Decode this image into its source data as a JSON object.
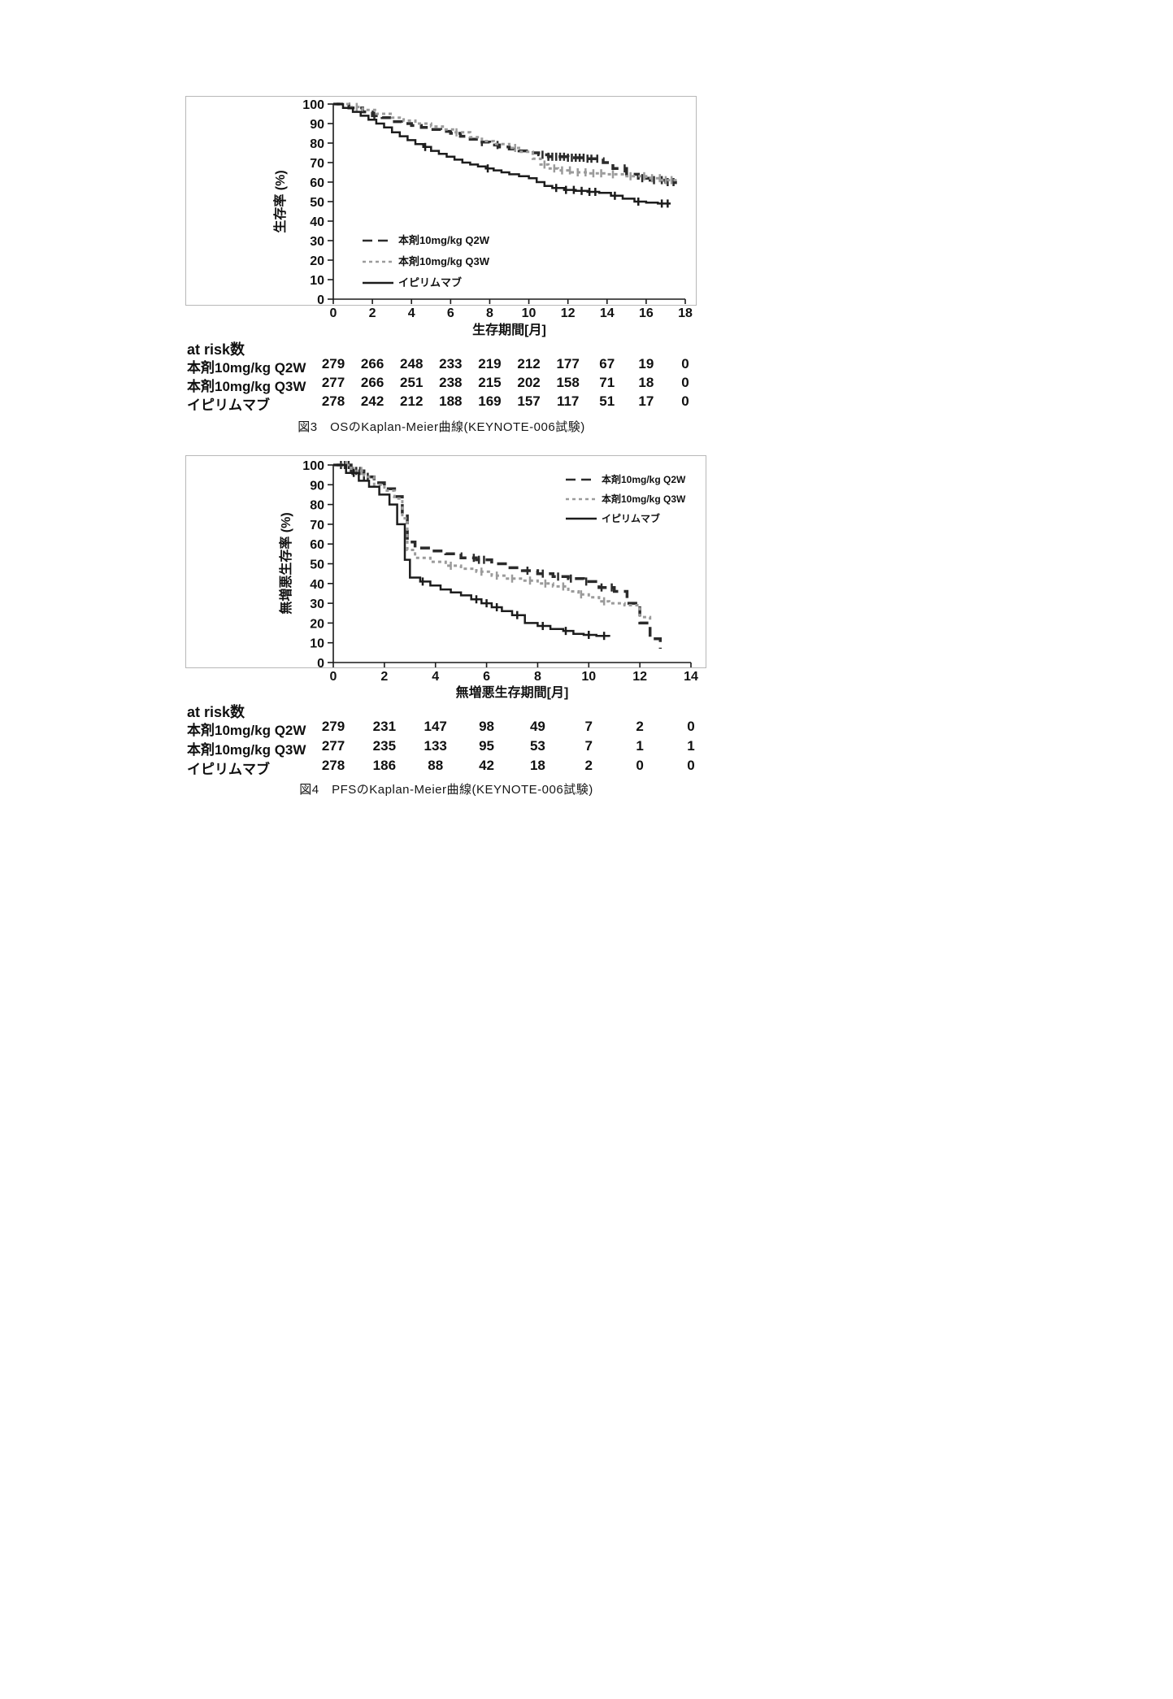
{
  "chart_data": [
    {
      "type": "line",
      "km_step": true,
      "title": "OSのKaplan-Meier曲線",
      "study": "KEYNOTE-006試験",
      "caption": "図3　OSのKaplan-Meier曲線(KEYNOTE-006試験)",
      "xlabel": "生存期間[月]",
      "ylabel": "生存率 (%)",
      "xlim": [
        0,
        18
      ],
      "ylim": [
        0,
        100
      ],
      "xticks": [
        0,
        2,
        4,
        6,
        8,
        10,
        12,
        14,
        16,
        18
      ],
      "yticks": [
        0,
        10,
        20,
        30,
        40,
        50,
        60,
        70,
        80,
        90,
        100
      ],
      "grid": false,
      "legend_position": "lower-left-inside",
      "series": [
        {
          "name": "本剤10mg/kg Q2W",
          "line": "dashed",
          "color": "#2b2b2b",
          "x": [
            0,
            0.8,
            1.5,
            2.0,
            2.5,
            3.0,
            3.5,
            4.0,
            4.5,
            5.0,
            5.5,
            6.0,
            6.5,
            7.0,
            7.5,
            8.0,
            8.5,
            9.0,
            9.5,
            10.0,
            10.5,
            11.0,
            12.0,
            13.0,
            13.8,
            14.3,
            15.0,
            15.6,
            16.2,
            17.0,
            17.5
          ],
          "y": [
            100,
            98,
            96,
            94,
            93,
            91,
            90,
            89,
            88,
            87,
            86,
            85,
            83.5,
            82,
            80.5,
            79,
            78,
            77,
            76,
            75,
            74,
            73,
            72.5,
            72,
            70,
            67,
            64,
            62,
            61,
            60,
            59
          ],
          "censor_x": [
            2.1,
            7.6,
            8.4,
            10.7,
            11.0,
            11.2,
            11.4,
            11.6,
            11.8,
            12.0,
            12.2,
            12.4,
            12.6,
            12.8,
            13.0,
            13.2,
            13.5,
            14.9,
            15.8,
            16.4,
            16.8,
            17.1,
            17.4
          ]
        },
        {
          "name": "本剤10mg/kg Q3W",
          "line": "dashed-light",
          "color": "#9b9b9b",
          "x": [
            0,
            0.8,
            1.5,
            2.2,
            3.0,
            3.6,
            4.2,
            5.0,
            5.6,
            6.2,
            7.0,
            7.6,
            8.2,
            9.0,
            9.6,
            10.2,
            10.6,
            11.0,
            11.5,
            12.2,
            13.0,
            14.0,
            15.0,
            16.0,
            16.8,
            17.5
          ],
          "y": [
            100,
            98.5,
            97,
            95,
            93,
            91.5,
            90,
            88.5,
            87,
            85.5,
            83,
            81,
            79.5,
            77.5,
            75.5,
            72,
            69,
            67,
            66,
            65,
            64.5,
            64,
            63,
            62,
            61,
            60
          ],
          "censor_x": [
            1.2,
            6.3,
            9.3,
            10.8,
            11.3,
            11.7,
            12.1,
            12.5,
            12.9,
            13.3,
            13.7,
            14.3,
            15.2,
            15.9,
            16.3,
            16.7,
            17.0,
            17.3
          ]
        },
        {
          "name": "イピリムマブ",
          "line": "solid",
          "color": "#1c1c1c",
          "x": [
            0,
            0.5,
            1.0,
            1.4,
            1.8,
            2.2,
            2.6,
            3.0,
            3.4,
            3.8,
            4.2,
            4.6,
            5.0,
            5.4,
            5.8,
            6.2,
            6.6,
            7.0,
            7.4,
            7.8,
            8.2,
            8.6,
            9.0,
            9.5,
            10.0,
            10.4,
            10.8,
            11.2,
            11.8,
            12.4,
            13.0,
            13.6,
            14.2,
            14.8,
            15.4,
            16.0,
            16.6,
            17.2
          ],
          "y": [
            100,
            98,
            96,
            94,
            92,
            90,
            88,
            85.5,
            83.5,
            81.5,
            79.5,
            78,
            76,
            74.5,
            73,
            71.5,
            70,
            69,
            68,
            67,
            66,
            65,
            64,
            63,
            62,
            60,
            58,
            57,
            56,
            55.5,
            55,
            54.5,
            53,
            51.5,
            50,
            49.5,
            49,
            48.5
          ],
          "censor_x": [
            4.7,
            7.9,
            11.4,
            11.9,
            12.3,
            12.7,
            13.1,
            13.4,
            14.4,
            15.6,
            16.8,
            17.1
          ]
        }
      ],
      "at_risk": {
        "label": "at risk数",
        "months": [
          0,
          2,
          4,
          6,
          8,
          10,
          12,
          14,
          16,
          18
        ],
        "rows": [
          {
            "name": "本剤10mg/kg Q2W",
            "values": [
              279,
              266,
              248,
              233,
              219,
              212,
              177,
              67,
              19,
              0
            ]
          },
          {
            "name": "本剤10mg/kg Q3W",
            "values": [
              277,
              266,
              251,
              238,
              215,
              202,
              158,
              71,
              18,
              0
            ]
          },
          {
            "name": "イピリムマブ",
            "values": [
              278,
              242,
              212,
              188,
              169,
              157,
              117,
              51,
              17,
              0
            ]
          }
        ]
      }
    },
    {
      "type": "line",
      "km_step": true,
      "title": "PFSのKaplan-Meier曲線",
      "study": "KEYNOTE-006試験",
      "caption": "図4　PFSのKaplan-Meier曲線(KEYNOTE-006試験)",
      "xlabel": "無増悪生存期間[月]",
      "ylabel": "無増悪生存率 (%)",
      "xlim": [
        0,
        14
      ],
      "ylim": [
        0,
        100
      ],
      "xticks": [
        0,
        2,
        4,
        6,
        8,
        10,
        12,
        14
      ],
      "yticks": [
        0,
        10,
        20,
        30,
        40,
        50,
        60,
        70,
        80,
        90,
        100
      ],
      "grid": false,
      "legend_position": "upper-right-inside",
      "series": [
        {
          "name": "本剤10mg/kg Q2W",
          "line": "dashed",
          "color": "#2b2b2b",
          "x": [
            0,
            0.7,
            1.2,
            1.6,
            2.0,
            2.4,
            2.7,
            2.9,
            3.2,
            3.8,
            4.4,
            5.0,
            5.6,
            6.2,
            6.8,
            7.4,
            8.0,
            8.6,
            9.2,
            9.8,
            10.4,
            11.0,
            11.5,
            12.0,
            12.4,
            12.8
          ],
          "y": [
            100,
            97,
            94,
            91,
            88,
            84,
            75,
            61,
            58,
            56.5,
            55,
            53,
            52,
            50,
            48,
            46.5,
            45,
            43.5,
            42.5,
            41,
            38,
            36,
            30,
            20,
            12,
            7
          ],
          "censor_x": [
            0.3,
            0.45,
            0.6,
            0.75,
            0.9,
            1.05,
            1.2,
            1.35,
            5.5,
            5.7,
            5.9,
            7.6,
            8.2,
            8.8,
            9.3,
            9.9,
            10.5,
            10.9
          ]
        },
        {
          "name": "本剤10mg/kg Q3W",
          "line": "dashed-light",
          "color": "#9b9b9b",
          "x": [
            0,
            0.7,
            1.2,
            1.6,
            2.0,
            2.4,
            2.7,
            2.9,
            3.2,
            3.8,
            4.4,
            5.0,
            5.6,
            6.2,
            6.8,
            7.4,
            8.0,
            8.6,
            9.2,
            9.6,
            10.0,
            10.4,
            10.8,
            11.4,
            12.0,
            12.4
          ],
          "y": [
            100,
            97,
            94,
            90,
            87,
            83,
            73,
            57,
            53,
            51,
            49,
            47.5,
            46,
            44,
            42.5,
            41.5,
            40,
            38.5,
            36,
            34.5,
            33,
            31,
            30,
            29,
            23,
            21
          ],
          "censor_x": [
            0.5,
            0.8,
            1.1,
            4.6,
            5.8,
            6.4,
            7.0,
            7.7,
            8.3,
            9.0,
            9.7,
            10.6
          ]
        },
        {
          "name": "イピリムマブ",
          "line": "solid",
          "color": "#1c1c1c",
          "x": [
            0,
            0.5,
            1.0,
            1.4,
            1.8,
            2.2,
            2.5,
            2.8,
            3.0,
            3.4,
            3.8,
            4.2,
            4.6,
            5.0,
            5.4,
            5.8,
            6.2,
            6.6,
            7.0,
            7.5,
            8.0,
            8.5,
            9.0,
            9.4,
            9.8,
            10.3,
            10.8
          ],
          "y": [
            100,
            96,
            92,
            89,
            85,
            80,
            70,
            52,
            43,
            41,
            39,
            37,
            35.5,
            34,
            32,
            30,
            28,
            26,
            24,
            20,
            18.5,
            17,
            16,
            14.5,
            14,
            13.5,
            13
          ],
          "censor_x": [
            0.8,
            3.5,
            5.6,
            6.0,
            6.4,
            7.2,
            8.2,
            9.1,
            10.0,
            10.6
          ]
        }
      ],
      "at_risk": {
        "label": "at risk数",
        "months": [
          0,
          2,
          4,
          6,
          8,
          10,
          12,
          14
        ],
        "rows": [
          {
            "name": "本剤10mg/kg Q2W",
            "values": [
              279,
              231,
              147,
              98,
              49,
              7,
              2,
              0
            ]
          },
          {
            "name": "本剤10mg/kg Q3W",
            "values": [
              277,
              235,
              133,
              95,
              53,
              7,
              1,
              1
            ]
          },
          {
            "name": "イピリムマブ",
            "values": [
              278,
              186,
              88,
              42,
              18,
              2,
              0,
              0
            ]
          }
        ]
      }
    }
  ]
}
